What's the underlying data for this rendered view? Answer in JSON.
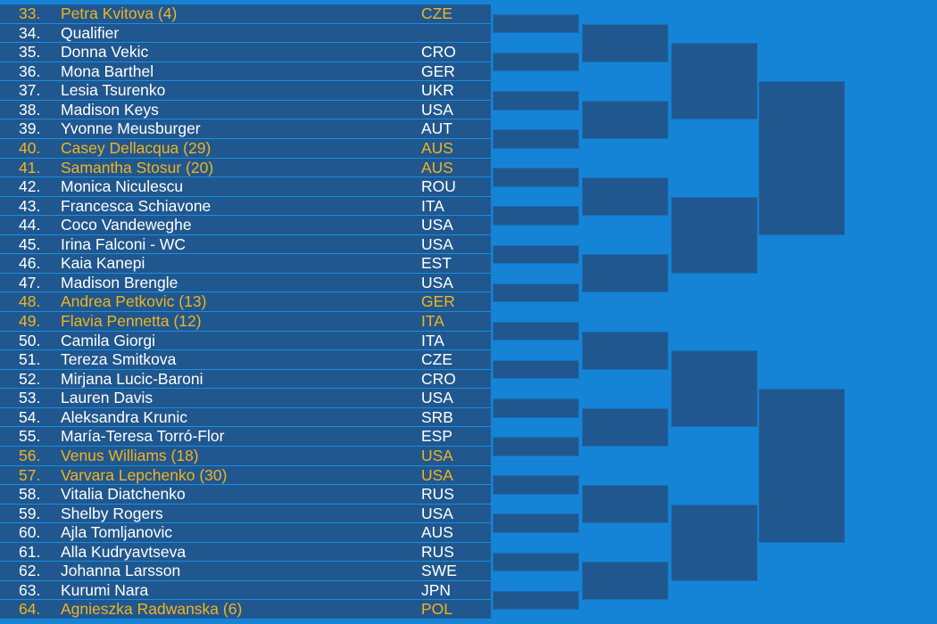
{
  "draw": {
    "entries": [
      {
        "num": "33.",
        "name": "Petra Kvitova (4)",
        "country": "CZE",
        "seeded": true
      },
      {
        "num": "34.",
        "name": "Qualifier",
        "country": "",
        "seeded": false
      },
      {
        "num": "35.",
        "name": "Donna Vekic",
        "country": "CRO",
        "seeded": false
      },
      {
        "num": "36.",
        "name": "Mona Barthel",
        "country": "GER",
        "seeded": false
      },
      {
        "num": "37.",
        "name": "Lesia Tsurenko",
        "country": "UKR",
        "seeded": false
      },
      {
        "num": "38.",
        "name": "Madison Keys",
        "country": "USA",
        "seeded": false
      },
      {
        "num": "39.",
        "name": "Yvonne Meusburger",
        "country": "AUT",
        "seeded": false
      },
      {
        "num": "40.",
        "name": "Casey Dellacqua (29)",
        "country": "AUS",
        "seeded": true
      },
      {
        "num": "41.",
        "name": "Samantha Stosur (20)",
        "country": "AUS",
        "seeded": true
      },
      {
        "num": "42.",
        "name": "Monica Niculescu",
        "country": "ROU",
        "seeded": false
      },
      {
        "num": "43.",
        "name": "Francesca Schiavone",
        "country": "ITA",
        "seeded": false
      },
      {
        "num": "44.",
        "name": "Coco Vandeweghe",
        "country": "USA",
        "seeded": false
      },
      {
        "num": "45.",
        "name": "Irina Falconi - WC",
        "country": "USA",
        "seeded": false
      },
      {
        "num": "46.",
        "name": "Kaia Kanepi",
        "country": "EST",
        "seeded": false
      },
      {
        "num": "47.",
        "name": "Madison Brengle",
        "country": "USA",
        "seeded": false
      },
      {
        "num": "48.",
        "name": "Andrea Petkovic (13)",
        "country": "GER",
        "seeded": true
      },
      {
        "num": "49.",
        "name": "Flavia Pennetta (12)",
        "country": "ITA",
        "seeded": true
      },
      {
        "num": "50.",
        "name": "Camila Giorgi",
        "country": "ITA",
        "seeded": false
      },
      {
        "num": "51.",
        "name": "Tereza Smitkova",
        "country": "CZE",
        "seeded": false
      },
      {
        "num": "52.",
        "name": "Mirjana Lucic-Baroni",
        "country": "CRO",
        "seeded": false
      },
      {
        "num": "53.",
        "name": "Lauren Davis",
        "country": "USA",
        "seeded": false
      },
      {
        "num": "54.",
        "name": "Aleksandra Krunic",
        "country": "SRB",
        "seeded": false
      },
      {
        "num": "55.",
        "name": "María-Teresa Torró-Flor",
        "country": "ESP",
        "seeded": false
      },
      {
        "num": "56.",
        "name": "Venus Williams (18)",
        "country": "USA",
        "seeded": true
      },
      {
        "num": "57.",
        "name": "Varvara Lepchenko (30)",
        "country": "USA",
        "seeded": true
      },
      {
        "num": "58.",
        "name": "Vitalia Diatchenko",
        "country": "RUS",
        "seeded": false
      },
      {
        "num": "59.",
        "name": "Shelby Rogers",
        "country": "USA",
        "seeded": false
      },
      {
        "num": "60.",
        "name": "Ajla Tomljanovic",
        "country": "AUS",
        "seeded": false
      },
      {
        "num": "61.",
        "name": "Alla Kudryavtseva",
        "country": "RUS",
        "seeded": false
      },
      {
        "num": "62.",
        "name": "Johanna Larsson",
        "country": "SWE",
        "seeded": false
      },
      {
        "num": "63.",
        "name": "Kurumi Nara",
        "country": "JPN",
        "seeded": false
      },
      {
        "num": "64.",
        "name": "Agnieszka Radwanska (6)",
        "country": "POL",
        "seeded": true
      }
    ]
  },
  "bracket": {
    "rounds": [
      16,
      8,
      4,
      2
    ]
  },
  "colors": {
    "background": "#1584d6",
    "panel": "#20578e",
    "text": "#ffffff",
    "seeded_text": "#f5b21e"
  }
}
